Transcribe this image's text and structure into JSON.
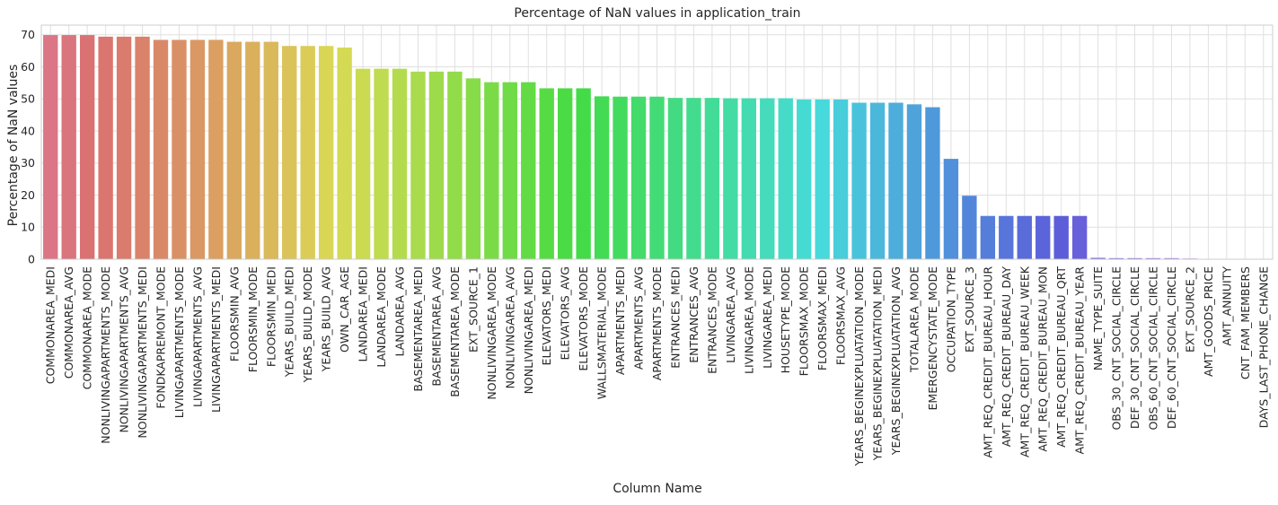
{
  "chart_data": {
    "type": "bar",
    "title": "Percentage of NaN values in application_train",
    "xlabel": "Column Name",
    "ylabel": "Percentage of NaN values",
    "ylim": [
      0,
      73
    ],
    "yticks": [
      0,
      10,
      20,
      30,
      40,
      50,
      60,
      70
    ],
    "grid": true,
    "legend": "none",
    "categories": [
      "COMMONAREA_MEDI",
      "COMMONAREA_AVG",
      "COMMONAREA_MODE",
      "NONLIVINGAPARTMENTS_MODE",
      "NONLIVINGAPARTMENTS_AVG",
      "NONLIVINGAPARTMENTS_MEDI",
      "FONDKAPREMONT_MODE",
      "LIVINGAPARTMENTS_MODE",
      "LIVINGAPARTMENTS_AVG",
      "LIVINGAPARTMENTS_MEDI",
      "FLOORSMIN_AVG",
      "FLOORSMIN_MODE",
      "FLOORSMIN_MEDI",
      "YEARS_BUILD_MEDI",
      "YEARS_BUILD_MODE",
      "YEARS_BUILD_AVG",
      "OWN_CAR_AGE",
      "LANDAREA_MEDI",
      "LANDAREA_MODE",
      "LANDAREA_AVG",
      "BASEMENTAREA_MEDI",
      "BASEMENTAREA_AVG",
      "BASEMENTAREA_MODE",
      "EXT_SOURCE_1",
      "NONLIVINGAREA_MODE",
      "NONLIVINGAREA_AVG",
      "NONLIVINGAREA_MEDI",
      "ELEVATORS_MEDI",
      "ELEVATORS_AVG",
      "ELEVATORS_MODE",
      "WALLSMATERIAL_MODE",
      "APARTMENTS_MEDI",
      "APARTMENTS_AVG",
      "APARTMENTS_MODE",
      "ENTRANCES_MEDI",
      "ENTRANCES_AVG",
      "ENTRANCES_MODE",
      "LIVINGAREA_AVG",
      "LIVINGAREA_MODE",
      "LIVINGAREA_MEDI",
      "HOUSETYPE_MODE",
      "FLOORSMAX_MODE",
      "FLOORSMAX_MEDI",
      "FLOORSMAX_AVG",
      "YEARS_BEGINEXPLUATATION_MODE",
      "YEARS_BEGINEXPLUATATION_MEDI",
      "YEARS_BEGINEXPLUATATION_AVG",
      "TOTALAREA_MODE",
      "EMERGENCYSTATE_MODE",
      "OCCUPATION_TYPE",
      "EXT_SOURCE_3",
      "AMT_REQ_CREDIT_BUREAU_HOUR",
      "AMT_REQ_CREDIT_BUREAU_DAY",
      "AMT_REQ_CREDIT_BUREAU_WEEK",
      "AMT_REQ_CREDIT_BUREAU_MON",
      "AMT_REQ_CREDIT_BUREAU_QRT",
      "AMT_REQ_CREDIT_BUREAU_YEAR",
      "NAME_TYPE_SUITE",
      "OBS_30_CNT_SOCIAL_CIRCLE",
      "DEF_30_CNT_SOCIAL_CIRCLE",
      "OBS_60_CNT_SOCIAL_CIRCLE",
      "DEF_60_CNT_SOCIAL_CIRCLE",
      "EXT_SOURCE_2",
      "AMT_GOODS_PRICE",
      "AMT_ANNUITY",
      "CNT_FAM_MEMBERS",
      "DAYS_LAST_PHONE_CHANGE"
    ],
    "values": [
      69.9,
      69.9,
      69.9,
      69.4,
      69.4,
      69.4,
      68.4,
      68.4,
      68.4,
      68.4,
      67.8,
      67.8,
      67.8,
      66.5,
      66.5,
      66.5,
      66.0,
      59.4,
      59.4,
      59.4,
      58.5,
      58.5,
      58.5,
      56.4,
      55.2,
      55.2,
      55.2,
      53.3,
      53.3,
      53.3,
      50.8,
      50.7,
      50.7,
      50.7,
      50.3,
      50.3,
      50.3,
      50.2,
      50.2,
      50.2,
      50.2,
      49.8,
      49.8,
      49.8,
      48.8,
      48.8,
      48.8,
      48.3,
      47.4,
      31.3,
      19.8,
      13.5,
      13.5,
      13.5,
      13.5,
      13.5,
      13.5,
      0.42,
      0.33,
      0.33,
      0.33,
      0.33,
      0.21,
      0.09,
      0.004,
      0.001,
      0.0003
    ]
  }
}
